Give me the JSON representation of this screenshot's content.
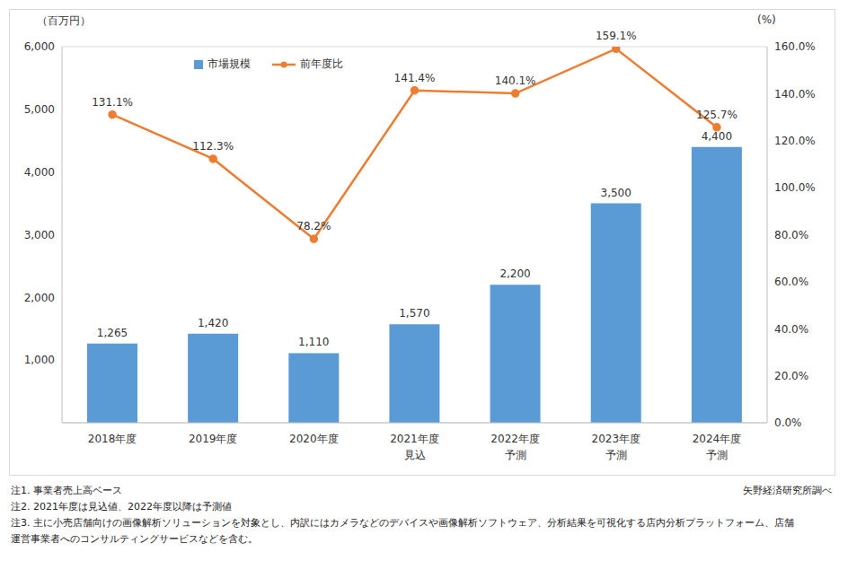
{
  "chart_data": {
    "type": "bar",
    "y_label": "（百万円）",
    "y2_label": "(%)",
    "categories": [
      "2018年度",
      "2019年度",
      "2020年度",
      "2021年度\n見込",
      "2022年度\n予測",
      "2023年度\n予測",
      "2024年度\n予測"
    ],
    "series": [
      {
        "name": "市場規模",
        "type": "bar",
        "color": "#5B9BD5",
        "values": [
          1265,
          1420,
          1110,
          1570,
          2200,
          3500,
          4400
        ],
        "value_labels": [
          "1,265",
          "1,420",
          "1,110",
          "1,570",
          "2,200",
          "3,500",
          "4,400"
        ]
      },
      {
        "name": "前年度比",
        "type": "line",
        "axis": "y2",
        "color": "#ED7D31",
        "marker": "circle",
        "values": [
          131.1,
          112.3,
          78.2,
          141.4,
          140.1,
          159.1,
          125.7
        ],
        "value_labels": [
          "131.1%",
          "112.3%",
          "78.2%",
          "141.4%",
          "140.1%",
          "159.1%",
          "125.7%"
        ]
      }
    ],
    "ylim": [
      0,
      6000
    ],
    "yticks": [
      0,
      {
        "value": 1000,
        "label": "1,000"
      },
      {
        "value": 2000,
        "label": "2,000"
      },
      {
        "value": 3000,
        "label": "3,000"
      },
      {
        "value": 4000,
        "label": "4,000"
      },
      {
        "value": 5000,
        "label": "5,000"
      },
      {
        "value": 6000,
        "label": "6,000"
      }
    ],
    "y2lim": [
      0,
      160
    ],
    "y2ticks": [
      {
        "value": 0,
        "label": "0.0%"
      },
      {
        "value": 20,
        "label": "20.0%"
      },
      {
        "value": 40,
        "label": "40.0%"
      },
      {
        "value": 60,
        "label": "60.0%"
      },
      {
        "value": 80,
        "label": "80.0%"
      },
      {
        "value": 100,
        "label": "100.0%"
      },
      {
        "value": 120,
        "label": "120.0%"
      },
      {
        "value": 140,
        "label": "140.0%"
      },
      {
        "value": 160,
        "label": "160.0%"
      }
    ],
    "grid": true,
    "data_labels": true,
    "legend": "top",
    "notes": [
      "注1.  事業者売上高ベース",
      "注2.  2021年度は見込値、2022年度以降は予測値",
      "注3.  主に小売店舗向けの画像解析ソリューションを対象とし、内訳にはカメラなどのデバイスや画像解析ソフトウェア、分析結果を可視化する店内分析プラットフォーム、店舗運営事業者へのコンサルティングサービスなどを含む。"
    ],
    "source": "矢野経済研究所調べ"
  }
}
